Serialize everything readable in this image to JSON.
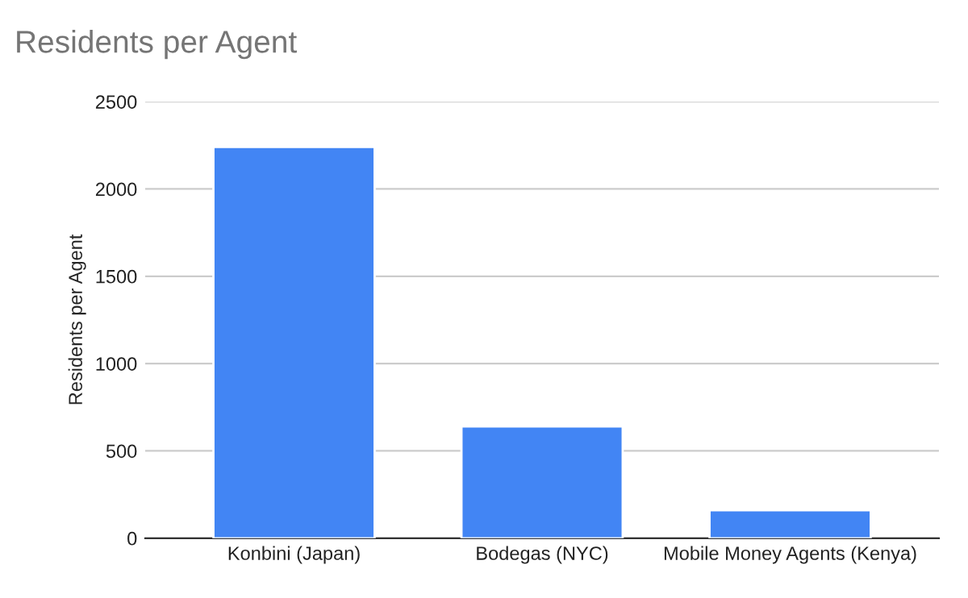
{
  "chart_data": {
    "type": "bar",
    "title": "Residents per Agent",
    "ylabel": "Residents per Agent",
    "categories": [
      "Konbini (Japan)",
      "Bodegas (NYC)",
      "Mobile Money Agents (Kenya)"
    ],
    "values": [
      2240,
      640,
      160
    ],
    "color": "#4285f4",
    "ylim": [
      0,
      2500
    ],
    "yticks": [
      0,
      500,
      1000,
      1500,
      2000,
      2500
    ],
    "grid": "y",
    "legend": false
  }
}
